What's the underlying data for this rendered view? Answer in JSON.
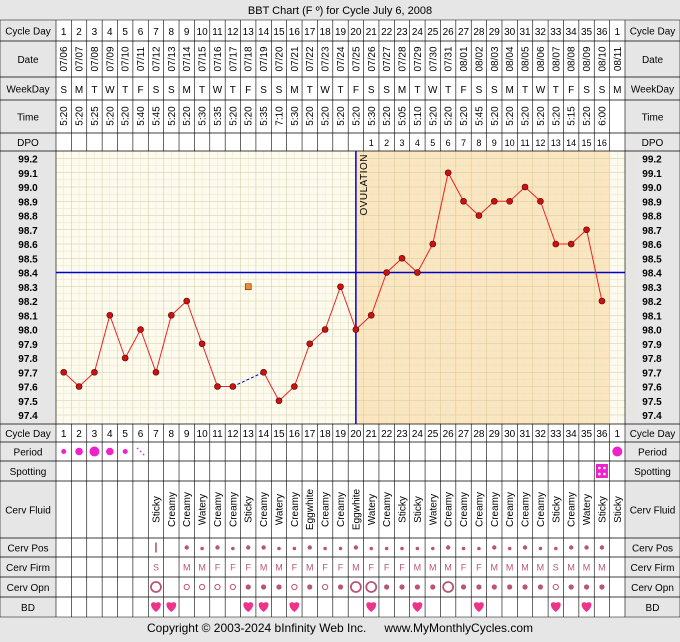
{
  "title": "BBT Chart (F º) for Cycle July 6, 2008",
  "footer": {
    "copyright": "Copyright © 2003-2024 bInfinity Web Inc.",
    "site": "www.MyMonthlyCycles.com"
  },
  "labels": {
    "cycle_day": "Cycle Day",
    "date": "Date",
    "weekday": "WeekDay",
    "time": "Time",
    "dpo": "DPO",
    "period": "Period",
    "spotting": "Spotting",
    "cerv_fluid": "Cerv Fluid",
    "cerv_pos": "Cerv Pos",
    "cerv_firm": "Cerv Firm",
    "cerv_opn": "Cerv Opn",
    "bd": "BD",
    "ovulation": "OVULATION"
  },
  "colors": {
    "background": "#e6e6e6",
    "chart_pre": "#fdfbee",
    "chart_post": "#fbe6bf",
    "temp_line": "#ee2222",
    "temp_point": "#cc1111",
    "coverline": "#0000cc",
    "period": "#ee22cc",
    "heart": "#ee3388",
    "circle": "#bb5577"
  },
  "chart_data": {
    "type": "line",
    "title": "BBT Chart (F º) for Cycle July 6, 2008",
    "y_ticks": [
      "99.2",
      "99.1",
      "99.0",
      "98.9",
      "98.8",
      "98.7",
      "98.6",
      "98.5",
      "98.4",
      "98.3",
      "98.2",
      "98.1",
      "98.0",
      "97.9",
      "97.8",
      "97.7",
      "97.6",
      "97.5",
      "97.4"
    ],
    "ylim": [
      97.4,
      99.2
    ],
    "cycle_days": [
      "1",
      "2",
      "3",
      "4",
      "5",
      "6",
      "7",
      "8",
      "9",
      "10",
      "11",
      "12",
      "13",
      "14",
      "15",
      "16",
      "17",
      "18",
      "19",
      "20",
      "21",
      "22",
      "23",
      "24",
      "25",
      "26",
      "27",
      "28",
      "29",
      "30",
      "31",
      "32",
      "33",
      "34",
      "35",
      "36",
      "1"
    ],
    "dates": [
      "07/06",
      "07/07",
      "07/08",
      "07/09",
      "07/10",
      "07/11",
      "07/12",
      "07/13",
      "07/14",
      "07/15",
      "07/16",
      "07/17",
      "07/18",
      "07/19",
      "07/20",
      "07/21",
      "07/22",
      "07/23",
      "07/24",
      "07/25",
      "07/26",
      "07/27",
      "07/28",
      "07/29",
      "07/30",
      "07/31",
      "08/01",
      "08/02",
      "08/03",
      "08/04",
      "08/05",
      "08/06",
      "08/07",
      "08/08",
      "08/09",
      "08/10",
      "08/11"
    ],
    "weekdays": [
      "S",
      "M",
      "T",
      "W",
      "T",
      "F",
      "S",
      "S",
      "M",
      "T",
      "W",
      "T",
      "F",
      "S",
      "S",
      "M",
      "T",
      "W",
      "T",
      "F",
      "S",
      "S",
      "M",
      "T",
      "W",
      "T",
      "F",
      "S",
      "S",
      "M",
      "T",
      "W",
      "T",
      "F",
      "S",
      "S",
      "M"
    ],
    "times": [
      "5:20",
      "5:20",
      "5:25",
      "5:20",
      "5:20",
      "5:40",
      "5:45",
      "5:20",
      "5:20",
      "5:30",
      "5:35",
      "5:20",
      "5:20",
      "5:35",
      "7:10",
      "5:30",
      "5:20",
      "5:20",
      "5:20",
      "5:20",
      "5:30",
      "5:20",
      "5:05",
      "5:10",
      "5:20",
      "5:20",
      "5:20",
      "5:45",
      "5:20",
      "5:20",
      "5:20",
      "5:20",
      "5:20",
      "5:15",
      "5:20",
      "6:00",
      ""
    ],
    "dpo": [
      "",
      "",
      "",
      "",
      "",
      "",
      "",
      "",
      "",
      "",
      "",
      "",
      "",
      "",
      "",
      "",
      "",
      "",
      "",
      "",
      "1",
      "2",
      "3",
      "4",
      "5",
      "6",
      "7",
      "8",
      "9",
      "10",
      "11",
      "12",
      "13",
      "14",
      "15",
      "16",
      ""
    ],
    "temperatures": [
      97.7,
      97.6,
      97.7,
      98.1,
      97.8,
      98.0,
      97.7,
      98.1,
      98.2,
      97.9,
      97.6,
      97.6,
      null,
      97.7,
      97.5,
      97.6,
      97.9,
      98.0,
      98.3,
      98.0,
      98.1,
      98.4,
      98.5,
      98.4,
      98.6,
      99.1,
      98.9,
      98.8,
      98.9,
      98.9,
      99.0,
      98.9,
      98.6,
      98.6,
      98.7,
      98.2,
      null
    ],
    "discarded": [
      {
        "day_index": 12,
        "value": 98.3
      }
    ],
    "coverline": 98.4,
    "ovulation_day_index": 19,
    "period": [
      "small",
      "medium",
      "large",
      "medium",
      "small",
      "dots",
      "",
      "",
      "",
      "",
      "",
      "",
      "",
      "",
      "",
      "",
      "",
      "",
      "",
      "",
      "",
      "",
      "",
      "",
      "",
      "",
      "",
      "",
      "",
      "",
      "",
      "",
      "",
      "",
      "",
      "spotting",
      "large"
    ],
    "cerv_fluid": [
      "",
      "",
      "",
      "",
      "",
      "",
      "Sticky",
      "Creamy",
      "Creamy",
      "Watery",
      "Creamy",
      "Creamy",
      "Sticky",
      "Creamy",
      "Watery",
      "Creamy",
      "Eggwhite",
      "Creamy",
      "Creamy",
      "Eggwhite",
      "Watery",
      "Creamy",
      "Sticky",
      "Sticky",
      "Watery",
      "Creamy",
      "Creamy",
      "Creamy",
      "Creamy",
      "Creamy",
      "Creamy",
      "Creamy",
      "Sticky",
      "Creamy",
      "Watery",
      "Sticky",
      "Sticky"
    ],
    "cerv_pos": [
      "",
      "",
      "",
      "",
      "",
      "",
      "h",
      "",
      "m",
      "l",
      "m",
      "l",
      "m",
      "m",
      "l",
      "l",
      "m",
      "l",
      "l",
      "m",
      "l",
      "l",
      "l",
      "l",
      "l",
      "m",
      "l",
      "l",
      "m",
      "l",
      "m",
      "l",
      "l",
      "m",
      "m",
      "m",
      ""
    ],
    "cerv_firm": [
      "",
      "",
      "",
      "",
      "",
      "",
      "S",
      "",
      "M",
      "M",
      "F",
      "F",
      "F",
      "M",
      "M",
      "F",
      "M",
      "F",
      "F",
      "M",
      "F",
      "F",
      "F",
      "M",
      "M",
      "M",
      "F",
      "F",
      "M",
      "M",
      "M",
      "M",
      "S",
      "M",
      "M",
      "M",
      ""
    ],
    "cerv_opn": [
      "",
      "",
      "",
      "",
      "",
      "",
      "lo",
      "",
      "s",
      "s",
      "s",
      "s",
      "m",
      "m",
      "m",
      "s",
      "m",
      "s",
      "m",
      "lo",
      "lo",
      "m",
      "m",
      "m",
      "m",
      "lo",
      "m",
      "m",
      "m",
      "m",
      "m",
      "m",
      "s",
      "m",
      "m",
      "m",
      ""
    ],
    "bd": [
      false,
      false,
      false,
      false,
      false,
      false,
      true,
      true,
      false,
      false,
      false,
      false,
      true,
      true,
      false,
      true,
      false,
      false,
      false,
      false,
      true,
      false,
      false,
      true,
      false,
      false,
      false,
      true,
      false,
      false,
      false,
      false,
      true,
      false,
      true,
      false,
      false
    ]
  }
}
